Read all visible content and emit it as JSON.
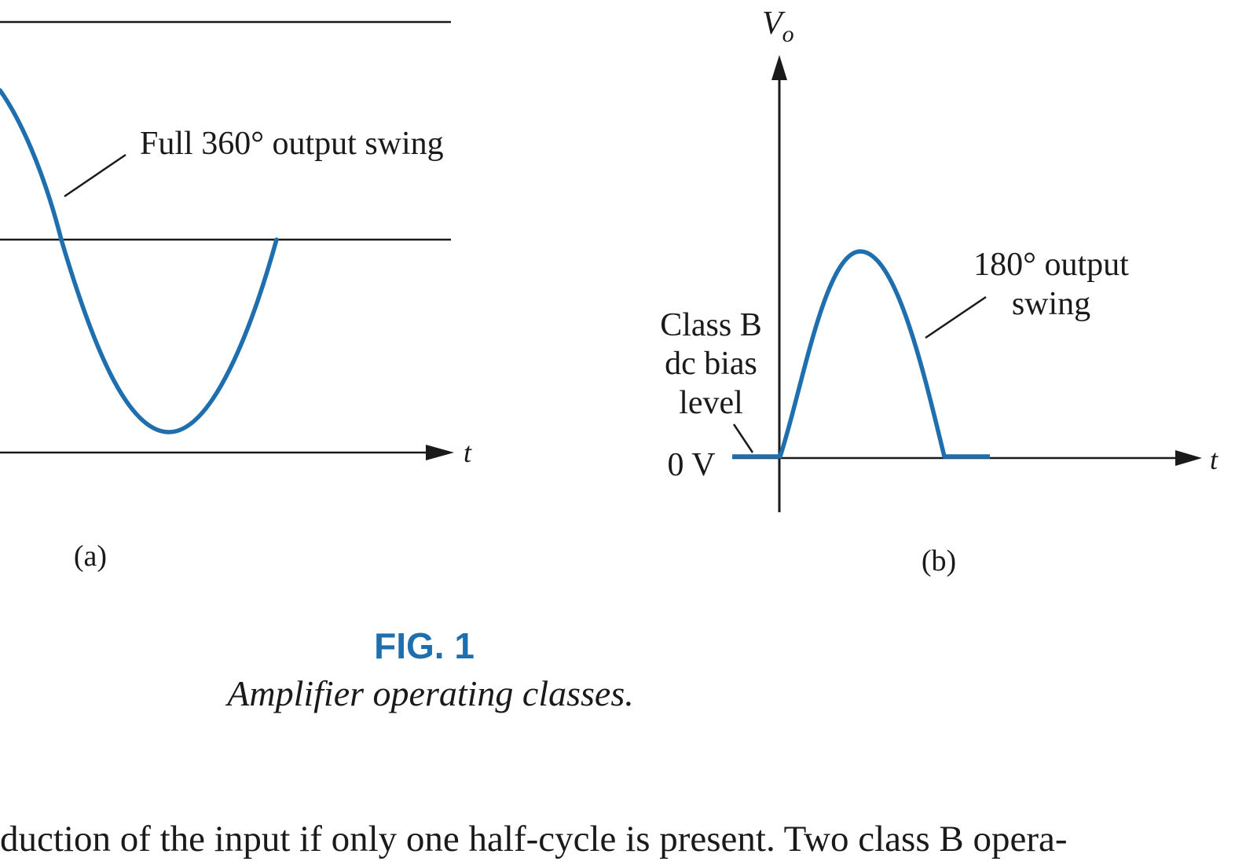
{
  "panel_a": {
    "annotation": "Full 360° output swing",
    "axis_t": "t",
    "caption": "(a)"
  },
  "panel_b": {
    "axis_v": "V",
    "axis_v_sub": "o",
    "axis_t": "t",
    "annotation_line1": "180° output",
    "annotation_line2": "swing",
    "bias_line1": "Class B",
    "bias_line2": "dc bias",
    "bias_line3": "level",
    "zero_label": "0 V",
    "caption": "(b)"
  },
  "figure": {
    "number": "FIG. 1",
    "caption": "Amplifier operating classes."
  },
  "body_text": "duction of the input if only one half-cycle is present. Two class B opera-",
  "colors": {
    "waveform": "#1f6fae",
    "axes": "#1a1a1a",
    "figure_number": "#1f6fae"
  }
}
